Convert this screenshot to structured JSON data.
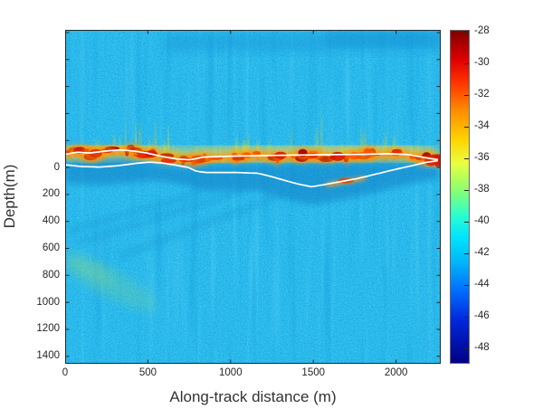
{
  "chart_data": {
    "type": "heatmap",
    "title": "",
    "xlabel": "Along-track distance (m)",
    "ylabel": "Depth(m)",
    "x_axis": {
      "range_m": [
        0,
        2270
      ],
      "ticks": [
        0,
        500,
        1000,
        1500,
        2000
      ]
    },
    "y_axis": {
      "range_m": [
        -1020,
        1455
      ],
      "ticks_labeled": [
        0,
        200,
        400,
        600,
        800,
        1000,
        1200,
        1400
      ],
      "ticks_unlabeled": [
        -1000,
        -800,
        -600,
        -400,
        -200
      ]
    },
    "colorbar": {
      "colormap": "jet",
      "range_db": [
        -49.0,
        -27.9
      ],
      "ticks": [
        -28,
        -30,
        -32,
        -34,
        -36,
        -38,
        -40,
        -42,
        -44,
        -46,
        -48
      ]
    },
    "background_level_db": -41.5,
    "surface_band": {
      "description": "bright near-surface scattering band",
      "depth_range_m": [
        -260,
        40
      ],
      "level_db_range": [
        -36,
        -28
      ]
    },
    "shadow_zone": {
      "description": "low-backscatter zone between/below picked lines",
      "level_db": -45
    },
    "series": [
      {
        "name": "surface-pick",
        "color": "#ffffff",
        "x": [
          0,
          70,
          150,
          250,
          345,
          425,
          495,
          580,
          670,
          755,
          835,
          975,
          1140,
          1300,
          1465,
          1630,
          1790,
          1955,
          2065,
          2145,
          2220,
          2268
        ],
        "depth": [
          -97,
          -113,
          -107,
          -123,
          -130,
          -120,
          -107,
          -83,
          -63,
          -57,
          -77,
          -83,
          -87,
          -90,
          -93,
          -95,
          -97,
          -102,
          -97,
          -80,
          -63,
          -57
        ]
      },
      {
        "name": "bottom-pick",
        "color": "#ffffff",
        "x": [
          0,
          100,
          210,
          320,
          425,
          510,
          590,
          670,
          745,
          790,
          850,
          1030,
          1165,
          1245,
          1330,
          1410,
          1490,
          1565,
          1655,
          1765,
          1875,
          1985,
          2095,
          2175,
          2268
        ],
        "depth": [
          -20,
          -7,
          -3,
          -13,
          -30,
          -40,
          -33,
          -17,
          0,
          27,
          37,
          37,
          43,
          67,
          97,
          123,
          143,
          127,
          107,
          83,
          50,
          17,
          -13,
          -37,
          -53
        ]
      }
    ]
  },
  "ui": {
    "figure_bg": "#ffffff",
    "axis_color": "#262626",
    "label_color": "#333333",
    "pick_line_color": "#ffffff",
    "plot_background_color": "#2abced"
  }
}
